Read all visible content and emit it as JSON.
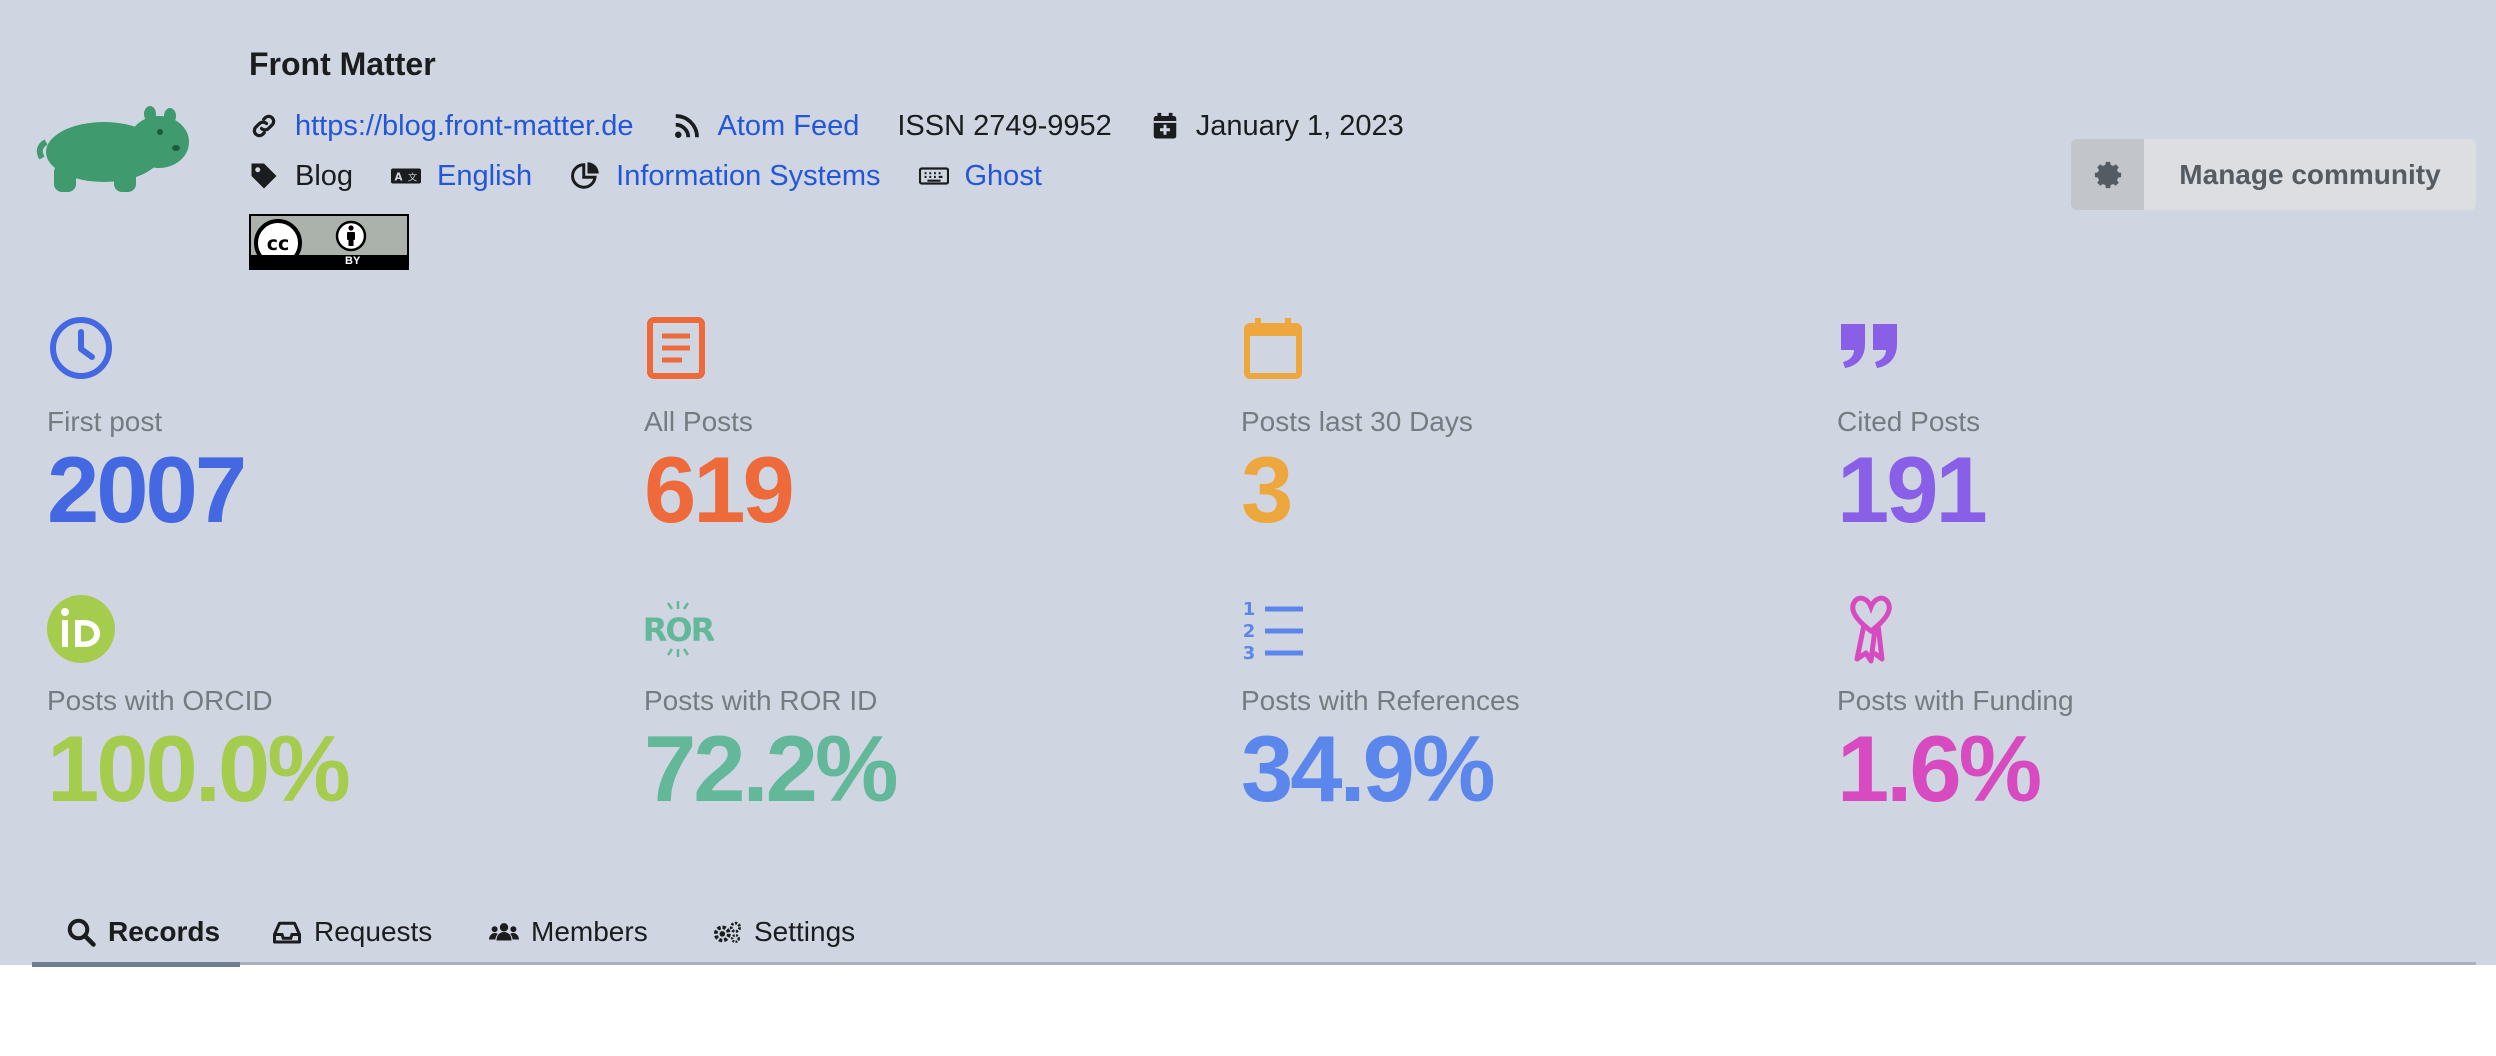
{
  "community": {
    "title": "Front Matter",
    "url": "https://blog.front-matter.de",
    "feed_label": "Atom Feed",
    "issn": "ISSN 2749-9952",
    "date": "January 1, 2023",
    "type": "Blog",
    "language": "English",
    "category": "Information Systems",
    "platform": "Ghost",
    "license_badge_text": "BY"
  },
  "manage_button": {
    "label": "Manage community"
  },
  "stats": [
    {
      "label": "First post",
      "value": "2007",
      "color": "#4467e2",
      "icon": "clock-icon"
    },
    {
      "label": "All Posts",
      "value": "619",
      "color": "#ef6a3a",
      "icon": "document-icon"
    },
    {
      "label": "Posts last 30 Days",
      "value": "3",
      "color": "#eda73c",
      "icon": "calendar-icon"
    },
    {
      "label": "Cited Posts",
      "value": "191",
      "color": "#8a5fe8",
      "icon": "quote-icon"
    },
    {
      "label": "Posts with ORCID",
      "value": "100.0%",
      "color": "#a6cc4e",
      "icon": "orcid-icon"
    },
    {
      "label": "Posts with ROR ID",
      "value": "72.2%",
      "color": "#63b89a",
      "icon": "ror-icon"
    },
    {
      "label": "Posts with References",
      "value": "34.9%",
      "color": "#5b86ec",
      "icon": "numbered-list-icon"
    },
    {
      "label": "Posts with Funding",
      "value": "1.6%",
      "color": "#d84bc0",
      "icon": "ribbon-icon"
    }
  ],
  "tabs": [
    {
      "label": "Records",
      "icon": "search-icon",
      "active": true
    },
    {
      "label": "Requests",
      "icon": "inbox-icon"
    },
    {
      "label": "Members",
      "icon": "users-icon"
    },
    {
      "label": "Settings",
      "icon": "cogs-icon"
    }
  ]
}
